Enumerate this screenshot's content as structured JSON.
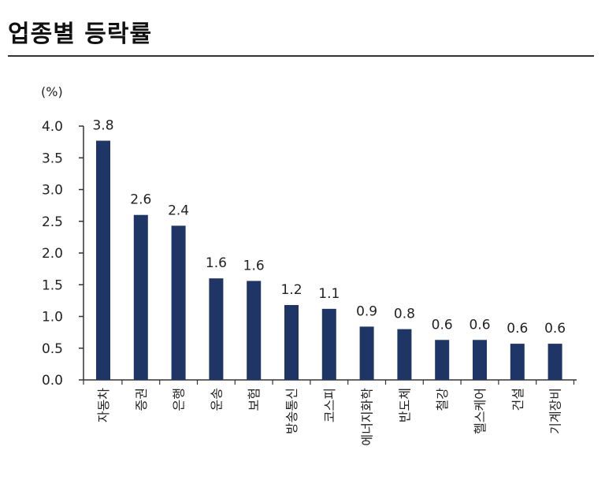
{
  "title": "업종별 등락률",
  "chart_data": {
    "type": "bar",
    "unit_label": "(%)",
    "categories": [
      "자동차",
      "증권",
      "은행",
      "운송",
      "보험",
      "방송통신",
      "코스피",
      "에너지화학",
      "반도체",
      "철강",
      "헬스케어",
      "건설",
      "기계장비"
    ],
    "values": [
      3.8,
      2.6,
      2.4,
      1.6,
      1.6,
      1.2,
      1.1,
      0.9,
      0.8,
      0.6,
      0.6,
      0.6,
      0.6
    ],
    "value_labels": [
      "3.8",
      "2.6",
      "2.4",
      "1.6",
      "1.6",
      "1.2",
      "1.1",
      "0.9",
      "0.8",
      "0.6",
      "0.6",
      "0.6",
      "0.6"
    ],
    "bar_heights": [
      3.77,
      2.6,
      2.43,
      1.6,
      1.56,
      1.18,
      1.12,
      0.84,
      0.8,
      0.63,
      0.63,
      0.57,
      0.57
    ],
    "yticks": [
      "0.0",
      "0.5",
      "1.0",
      "1.5",
      "2.0",
      "2.5",
      "3.0",
      "3.5",
      "4.0"
    ],
    "ylim": [
      0,
      4.0
    ],
    "bar_color": "#1f3566",
    "grid": false
  }
}
